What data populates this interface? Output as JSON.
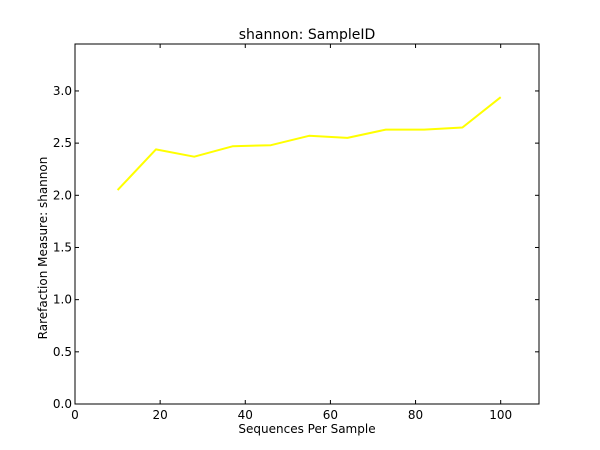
{
  "chart_data": {
    "type": "line",
    "title": "shannon: SampleID",
    "xlabel": "Sequences Per Sample",
    "ylabel": "Rarefaction Measure: shannon",
    "xlim": [
      0,
      109
    ],
    "ylim": [
      0,
      3.45
    ],
    "xticks": [
      0,
      20,
      40,
      60,
      80,
      100
    ],
    "xtick_labels": [
      "0",
      "20",
      "40",
      "60",
      "80",
      "100"
    ],
    "yticks": [
      0,
      0.5,
      1.0,
      1.5,
      2.0,
      2.5,
      3.0
    ],
    "ytick_labels": [
      "0.0",
      "0.5",
      "1.0",
      "1.5",
      "2.0",
      "2.5",
      "3.0"
    ],
    "grid": false,
    "series": [
      {
        "color": "#ffff00",
        "x": [
          10,
          19,
          28,
          37,
          46,
          55,
          64,
          73,
          82,
          91,
          100
        ],
        "y": [
          2.05,
          2.44,
          2.37,
          2.47,
          2.48,
          2.57,
          2.55,
          2.63,
          2.63,
          2.65,
          2.94
        ]
      }
    ]
  }
}
